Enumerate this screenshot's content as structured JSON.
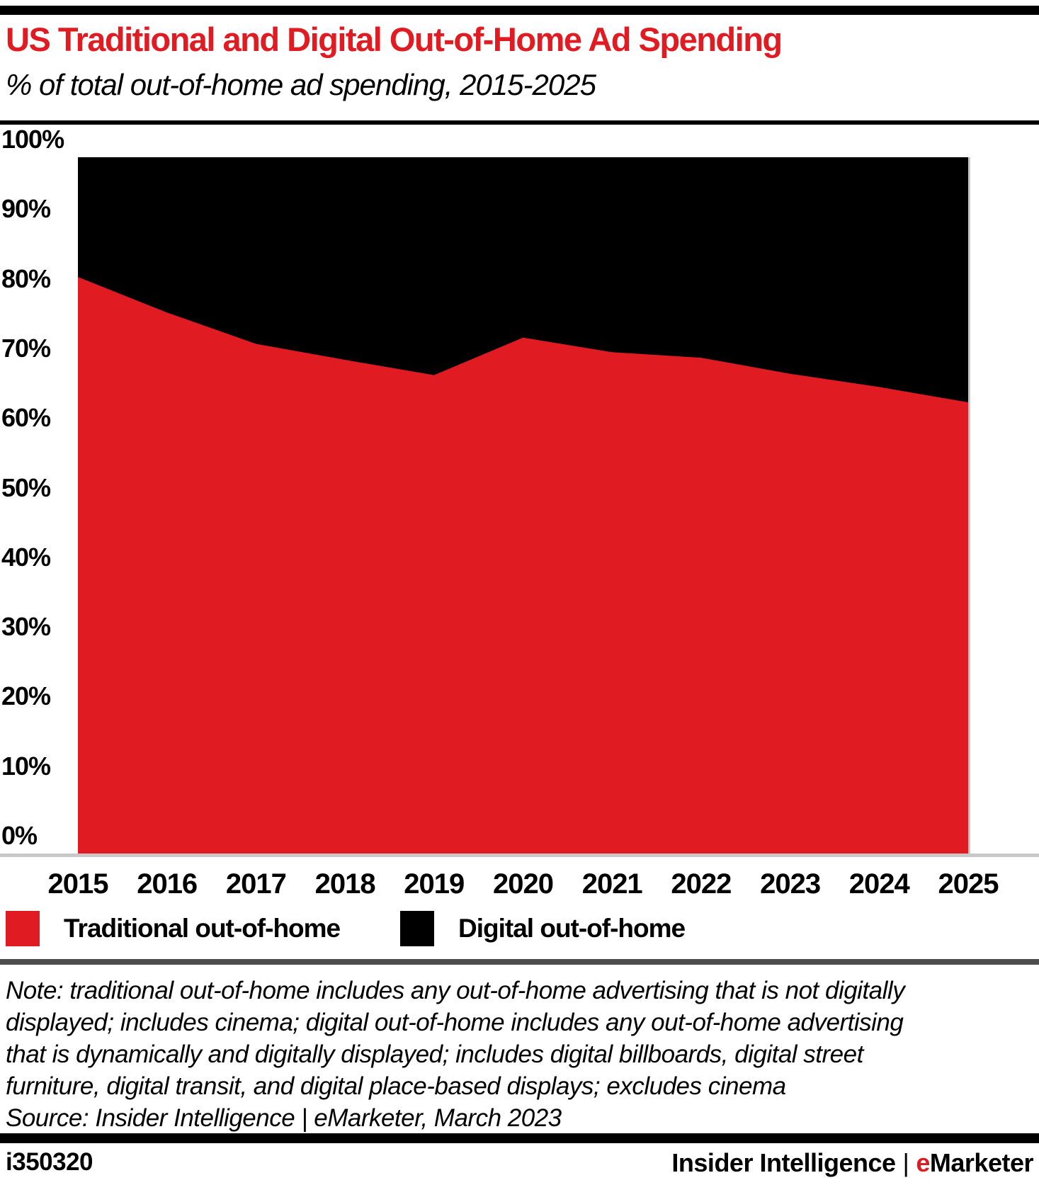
{
  "header": {
    "title": "US Traditional and Digital Out-of-Home Ad Spending",
    "subtitle": "% of total out-of-home ad spending, 2015-2025"
  },
  "chart_data": {
    "type": "area",
    "stacked": true,
    "total": 100,
    "title": "US Traditional and Digital Out-of-Home Ad Spending",
    "subtitle": "% of total out-of-home ad spending, 2015-2025",
    "x": [
      "2015",
      "2016",
      "2017",
      "2018",
      "2019",
      "2020",
      "2021",
      "2022",
      "2023",
      "2024",
      "2025"
    ],
    "series": [
      {
        "name": "Traditional out-of-home",
        "color": "#e11b22",
        "values": [
          82.8,
          77.7,
          73.2,
          70.9,
          68.7,
          74.1,
          72.0,
          71.2,
          68.9,
          67.0,
          64.8
        ]
      },
      {
        "name": "Digital out-of-home",
        "color": "#000000",
        "values": [
          17.2,
          22.3,
          26.8,
          29.1,
          31.3,
          25.9,
          28.0,
          28.8,
          31.1,
          33.0,
          35.2
        ]
      }
    ],
    "unit": "%",
    "ylim": [
      0,
      100
    ],
    "yticks": [
      {
        "label": "100%",
        "value": 100
      },
      {
        "label": "90%",
        "value": 90
      },
      {
        "label": "80%",
        "value": 80
      },
      {
        "label": "70%",
        "value": 70
      },
      {
        "label": "60%",
        "value": 60
      },
      {
        "label": "50%",
        "value": 50
      },
      {
        "label": "40%",
        "value": 40
      },
      {
        "label": "30%",
        "value": 30
      },
      {
        "label": "20%",
        "value": 20
      },
      {
        "label": "10%",
        "value": 10
      },
      {
        "label": "0%",
        "value": 0
      }
    ],
    "grid": false,
    "legend_position": "bottom"
  },
  "notes": {
    "lines": [
      "Note: traditional out-of-home includes any out-of-home advertising that is not digitally",
      "displayed; includes cinema; digital out-of-home includes any out-of-home advertising",
      "that is dynamically and digitally displayed; includes digital billboards, digital street",
      "furniture, digital transit, and digital place-based displays; excludes cinema"
    ],
    "source": "Source: Insider Intelligence | eMarketer, March 2023"
  },
  "footer": {
    "chart_id": "i350320",
    "brand_left": "Insider Intelligence",
    "brand_accent": "e",
    "brand_rest": "Marketer"
  }
}
